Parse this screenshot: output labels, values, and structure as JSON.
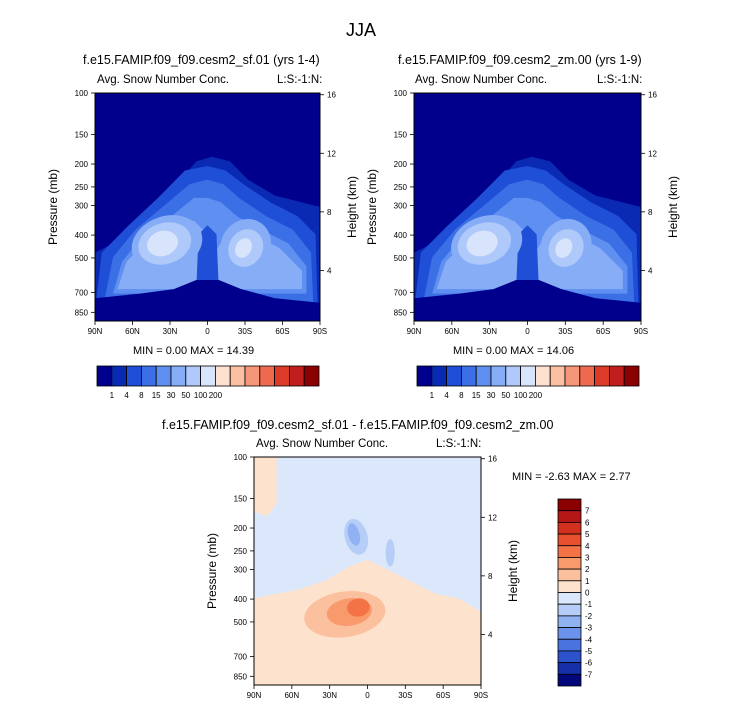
{
  "figure": {
    "title": "JJA",
    "panels": [
      {
        "title": "f.e15.FAMIP.f09_f09.cesm2_sf.01 (yrs 1-4)",
        "left_label": "Avg. Snow Number Conc.",
        "right_label": "L:S:-1:N:",
        "stats": "MIN =  0.00  MAX = 14.39"
      },
      {
        "title": "f.e15.FAMIP.f09_f09.cesm2_zm.00 (yrs 1-9)",
        "left_label": "Avg. Snow Number Conc.",
        "right_label": "L:S:-1:N:",
        "stats": "MIN =  0.00  MAX = 14.06"
      },
      {
        "title": "f.e15.FAMIP.f09_f09.cesm2_sf.01 - f.e15.FAMIP.f09_f09.cesm2_zm.00",
        "left_label": "Avg. Snow Number Conc.",
        "right_label": "L:S:-1:N:",
        "stats": "MIN =  -2.63  MAX =   2.77"
      }
    ]
  },
  "chart_data": [
    {
      "type": "heatmap",
      "title": "f.e15.FAMIP.f09_f09.cesm2_sf.01 (yrs 1-4)",
      "xlabel": "",
      "ylabel": "Pressure (mb)",
      "y2label": "Height (km)",
      "x_ticks": [
        "90N",
        "60N",
        "30N",
        "0",
        "30S",
        "60S",
        "90S"
      ],
      "y_ticks": [
        100,
        150,
        200,
        250,
        300,
        400,
        500,
        700,
        850
      ],
      "y2_ticks": [
        4,
        8,
        12,
        16
      ],
      "min": 0.0,
      "max": 14.39,
      "colorbar": [
        "1",
        "4",
        "8",
        "15",
        "30",
        "50",
        "100",
        "200"
      ],
      "colors": [
        "#00008c",
        "#0a2ab4",
        "#1f4fd6",
        "#3b6fe6",
        "#5f8ff0",
        "#86adf5",
        "#afc9fa",
        "#d7e4fb",
        "#fde0d0",
        "#fbbfa3",
        "#f5957a",
        "#ee6a4f",
        "#dd3b2a",
        "#c01d1d",
        "#8b0000"
      ]
    },
    {
      "type": "heatmap",
      "title": "f.e15.FAMIP.f09_f09.cesm2_zm.00 (yrs 1-9)",
      "xlabel": "",
      "ylabel": "Pressure (mb)",
      "y2label": "Height (km)",
      "x_ticks": [
        "90N",
        "60N",
        "30N",
        "0",
        "30S",
        "60S",
        "90S"
      ],
      "y_ticks": [
        100,
        150,
        200,
        250,
        300,
        400,
        500,
        700,
        850
      ],
      "y2_ticks": [
        4,
        8,
        12,
        16
      ],
      "min": 0.0,
      "max": 14.06,
      "colorbar": [
        "1",
        "4",
        "8",
        "15",
        "30",
        "50",
        "100",
        "200"
      ],
      "colors": [
        "#00008c",
        "#0a2ab4",
        "#1f4fd6",
        "#3b6fe6",
        "#5f8ff0",
        "#86adf5",
        "#afc9fa",
        "#d7e4fb",
        "#fde0d0",
        "#fbbfa3",
        "#f5957a",
        "#ee6a4f",
        "#dd3b2a",
        "#c01d1d",
        "#8b0000"
      ]
    },
    {
      "type": "heatmap",
      "title": "f.e15.FAMIP.f09_f09.cesm2_sf.01 - f.e15.FAMIP.f09_f09.cesm2_zm.00",
      "xlabel": "",
      "ylabel": "Pressure (mb)",
      "y2label": "Height (km)",
      "x_ticks": [
        "90N",
        "60N",
        "30N",
        "0",
        "30S",
        "60S",
        "90S"
      ],
      "y_ticks": [
        100,
        150,
        200,
        250,
        300,
        400,
        500,
        700,
        850
      ],
      "y2_ticks": [
        4,
        8,
        12,
        16
      ],
      "min": -2.63,
      "max": 2.77,
      "colorbar": [
        "7",
        "6",
        "5",
        "4",
        "3",
        "2",
        "1",
        "0",
        "-1",
        "-2",
        "-3",
        "-4",
        "-5",
        "-6",
        "-7"
      ],
      "colors": [
        "#8b0000",
        "#b51616",
        "#d4301f",
        "#e8502e",
        "#f37346",
        "#f89a6b",
        "#fbc19e",
        "#fde3cd",
        "#dbe8fb",
        "#b6cdf7",
        "#90b1f2",
        "#6c93ec",
        "#4a73e0",
        "#2c52cc",
        "#1530a8",
        "#02087a"
      ]
    }
  ]
}
